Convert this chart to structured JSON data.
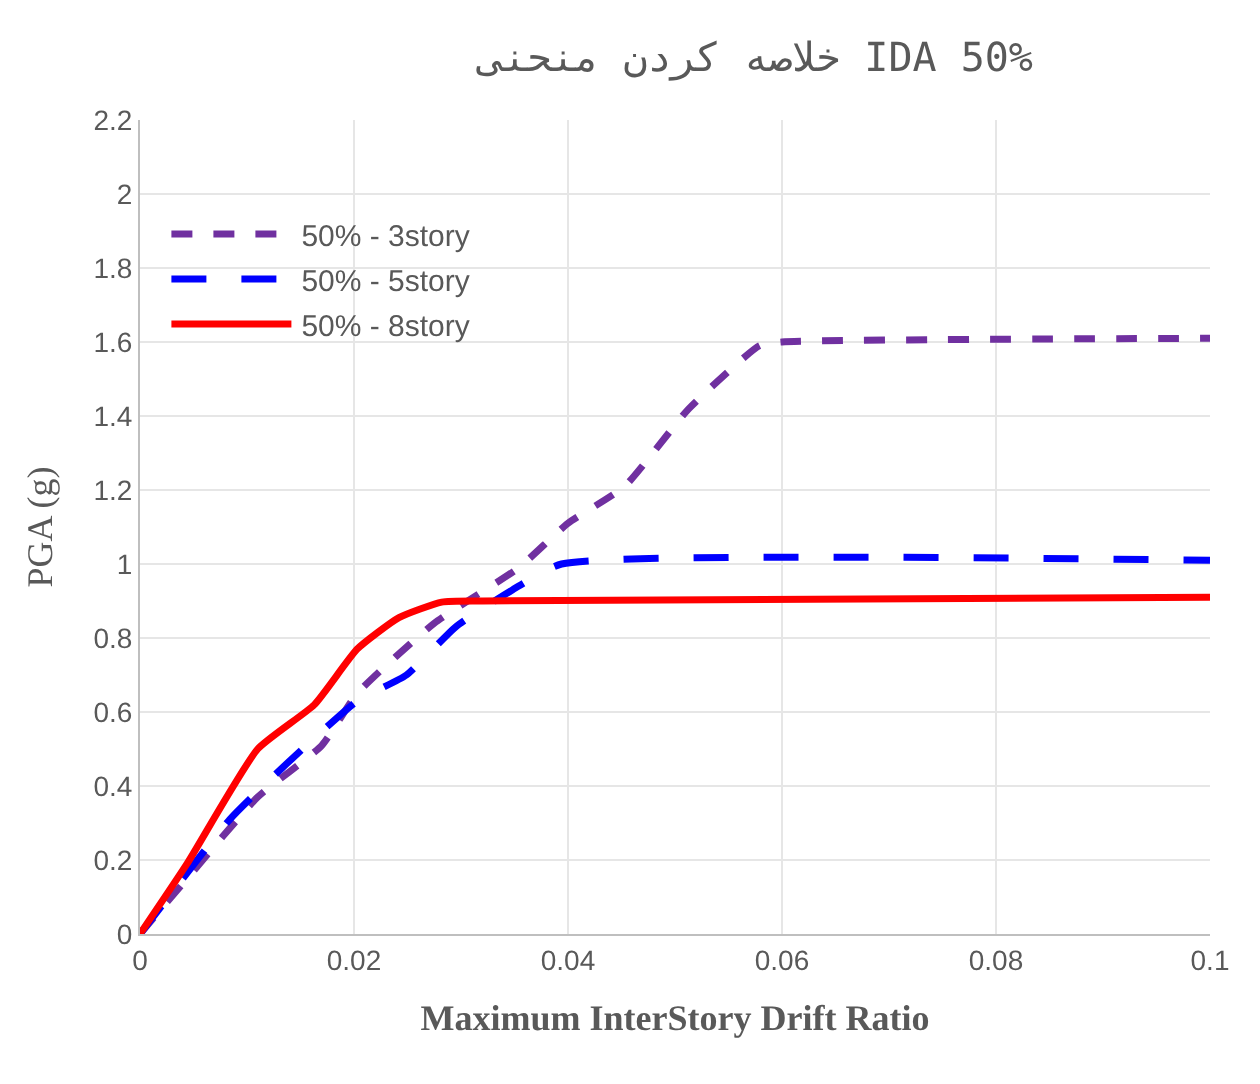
{
  "chart_data": {
    "type": "line",
    "title": "خلاصه کردن منحنی IDA 50%",
    "xlabel": "Maximum InterStory Drift Ratio",
    "ylabel": "PGA (g)",
    "xlim": [
      0,
      0.1
    ],
    "xticks": [
      0,
      0.02,
      0.04,
      0.06,
      0.08,
      0.1
    ],
    "ylim": [
      0,
      2.2
    ],
    "yticks": [
      0,
      0.2,
      0.4,
      0.6,
      0.8,
      1,
      1.2,
      1.4,
      1.6,
      1.8,
      2,
      2.2
    ],
    "grid": true,
    "legend": "top left",
    "marker": "none",
    "series": [
      {
        "name": "50% - 3story",
        "color": "#7030a0",
        "line_style": "dotted",
        "x": [
          0,
          0.0044,
          0.011,
          0.017,
          0.0203,
          0.0275,
          0.0354,
          0.04,
          0.0453,
          0.0513,
          0.0579,
          0.06,
          0.1
        ],
        "values": [
          0,
          0.15,
          0.37,
          0.51,
          0.65,
          0.84,
          0.99,
          1.11,
          1.21,
          1.42,
          1.59,
          1.6,
          1.61
        ]
      },
      {
        "name": "50% - 5story",
        "color": "#0000ff",
        "line_style": "dashed",
        "x": [
          0,
          0.0084,
          0.0137,
          0.0203,
          0.0249,
          0.0295,
          0.0348,
          0.0394,
          0.1
        ],
        "values": [
          0,
          0.31,
          0.46,
          0.63,
          0.7,
          0.83,
          0.93,
          1.0,
          1.01
        ]
      },
      {
        "name": "50% - 8story",
        "color": "#ff0000",
        "line_style": "solid",
        "x": [
          0,
          0.0044,
          0.011,
          0.0163,
          0.0203,
          0.0242,
          0.0282,
          0.032,
          0.1
        ],
        "values": [
          0,
          0.19,
          0.5,
          0.62,
          0.77,
          0.855,
          0.897,
          0.9,
          0.91
        ]
      }
    ]
  }
}
